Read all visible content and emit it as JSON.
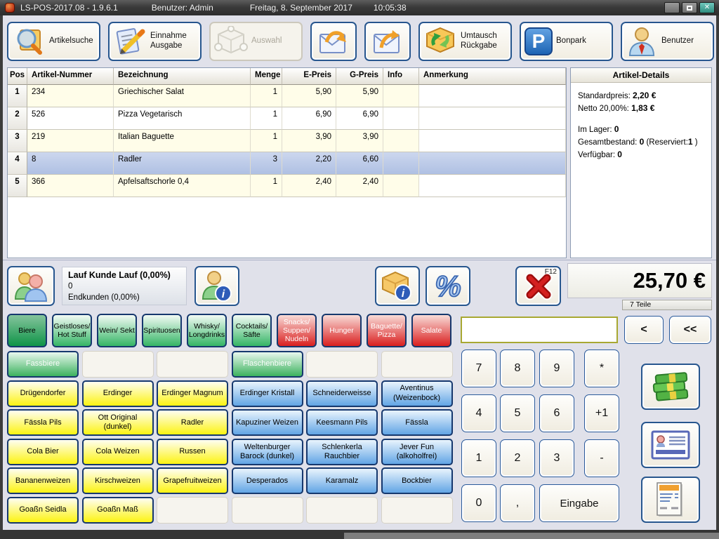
{
  "titlebar": {
    "title": "LS-POS-2017.08 - 1.9.6.1",
    "user": "Benutzer: Admin",
    "date": "Freitag, 8. September 2017",
    "time": "10:05:38",
    "close_glyph": "✕"
  },
  "toolbar": {
    "buttons": [
      {
        "label": "Artikelsuche",
        "icon": "search-box"
      },
      {
        "label": "Einnahme\nAusgabe",
        "icon": "note-pencil"
      },
      {
        "label": "Auswahl",
        "icon": "gray-cube",
        "disabled": true
      },
      {
        "label": "",
        "icon": "envelope-arrow-in"
      },
      {
        "label": "",
        "icon": "envelope-arrow-out"
      },
      {
        "label": "Umtausch\nRückgabe",
        "icon": "exchange-box"
      },
      {
        "label": "Bonpark",
        "icon": "parking",
        "glyph": "P"
      },
      {
        "label": "Benutzer",
        "icon": "user"
      }
    ]
  },
  "table": {
    "columns": [
      "Pos",
      "Artikel-Nummer",
      "Bezeichnung",
      "Menge",
      "E-Preis",
      "G-Preis",
      "Info",
      "Anmerkung"
    ],
    "rows": [
      {
        "pos": "1",
        "nr": "234",
        "name": "Griechischer Salat",
        "menge": "1",
        "epreis": "5,90",
        "gpreis": "5,90",
        "info": "",
        "anm": "",
        "selected": false
      },
      {
        "pos": "2",
        "nr": "526",
        "name": "Pizza Vegetarisch",
        "menge": "1",
        "epreis": "6,90",
        "gpreis": "6,90",
        "info": "",
        "anm": "",
        "selected": false
      },
      {
        "pos": "3",
        "nr": "219",
        "name": "Italian Baguette",
        "menge": "1",
        "epreis": "3,90",
        "gpreis": "3,90",
        "info": "",
        "anm": "",
        "selected": false
      },
      {
        "pos": "4",
        "nr": "8",
        "name": "Radler",
        "menge": "3",
        "epreis": "2,20",
        "gpreis": "6,60",
        "info": "",
        "anm": "",
        "selected": true
      },
      {
        "pos": "5",
        "nr": "366",
        "name": "Apfelsaftschorle 0,4",
        "menge": "1",
        "epreis": "2,40",
        "gpreis": "2,40",
        "info": "",
        "anm": "",
        "selected": false
      }
    ]
  },
  "details": {
    "title": "Artikel-Details",
    "lines": [
      [
        {
          "t": "Standardpreis: "
        },
        {
          "t": "2,20 €",
          "b": true
        }
      ],
      [
        {
          "t": "Netto 20,00%: "
        },
        {
          "t": "1,83 €",
          "b": true
        }
      ],
      [],
      [
        {
          "t": "Im Lager: "
        },
        {
          "t": "0",
          "b": true
        }
      ],
      [
        {
          "t": "Gesamtbestand: "
        },
        {
          "t": "0",
          "b": true
        },
        {
          "t": "  (Reserviert:"
        },
        {
          "t": "1",
          "b": true
        },
        {
          "t": " )"
        }
      ],
      [
        {
          "t": "Verfügbar: "
        },
        {
          "t": "0",
          "b": true
        }
      ]
    ]
  },
  "customer": {
    "line1": "Lauf Kunde Lauf (0,00%)",
    "line2": "0",
    "line3": "Endkunden (0,00%)"
  },
  "payment": {
    "total": "25,70 €",
    "items": "7 Teile",
    "cancel_fkey": "F12"
  },
  "categories": [
    {
      "label": "Biere",
      "color": "green",
      "selected": true
    },
    {
      "label": "Geistloses/ Hot Stuff",
      "color": "green"
    },
    {
      "label": "Wein/ Sekt",
      "color": "green"
    },
    {
      "label": "Spirituosen",
      "color": "green"
    },
    {
      "label": "Whisky/ Longdrinks",
      "color": "green"
    },
    {
      "label": "Cocktails/ Säfte",
      "color": "green"
    },
    {
      "label": "Snacks/ Suppen/ Nudeln",
      "color": "red"
    },
    {
      "label": "Hunger",
      "color": "red"
    },
    {
      "label": "Baguette/ Pizza",
      "color": "red"
    },
    {
      "label": "Salate",
      "color": "red"
    }
  ],
  "product_grid": {
    "rows": [
      [
        {
          "label": "Fassbiere",
          "type": "header"
        },
        {
          "type": "empty"
        },
        {
          "type": "empty"
        },
        {
          "label": "Flaschenbiere",
          "type": "header"
        },
        {
          "type": "empty"
        },
        {
          "type": "empty"
        }
      ],
      [
        {
          "label": "Drügendorfer",
          "type": "yellow"
        },
        {
          "label": "Erdinger",
          "type": "yellow"
        },
        {
          "label": "Erdinger Magnum",
          "type": "yellow"
        },
        {
          "label": "Erdinger Kristall",
          "type": "blue"
        },
        {
          "label": "Schneiderweisse",
          "type": "blue"
        },
        {
          "label": "Aventinus (Weizenbock)",
          "type": "blue"
        }
      ],
      [
        {
          "label": "Fässla Pils",
          "type": "yellow"
        },
        {
          "label": "Ott Original (dunkel)",
          "type": "yellow"
        },
        {
          "label": "Radler",
          "type": "yellow"
        },
        {
          "label": "Kapuziner Weizen",
          "type": "blue"
        },
        {
          "label": "Keesmann Pils",
          "type": "blue"
        },
        {
          "label": "Fässla",
          "type": "blue"
        }
      ],
      [
        {
          "label": "Cola Bier",
          "type": "yellow"
        },
        {
          "label": "Cola Weizen",
          "type": "yellow"
        },
        {
          "label": "Russen",
          "type": "yellow"
        },
        {
          "label": "Weltenburger Barock (dunkel)",
          "type": "blue"
        },
        {
          "label": "Schlenkerla Rauchbier",
          "type": "blue"
        },
        {
          "label": "Jever Fun (alkoholfrei)",
          "type": "blue"
        }
      ],
      [
        {
          "label": "Bananenweizen",
          "type": "yellow"
        },
        {
          "label": "Kirschweizen",
          "type": "yellow"
        },
        {
          "label": "Grapefruitweizen",
          "type": "yellow"
        },
        {
          "label": "Desperados",
          "type": "blue"
        },
        {
          "label": "Karamalz",
          "type": "blue"
        },
        {
          "label": "Bockbier",
          "type": "blue"
        }
      ],
      [
        {
          "label": "Goaßn Seidla",
          "type": "yellow"
        },
        {
          "label": "Goaßn Maß",
          "type": "yellow"
        },
        {
          "type": "empty"
        },
        {
          "type": "empty"
        },
        {
          "type": "empty"
        },
        {
          "type": "empty"
        }
      ]
    ]
  },
  "numpad": {
    "input_value": "",
    "back": "<",
    "back_all": "<<",
    "keys": [
      [
        "7",
        "8",
        "9",
        "*"
      ],
      [
        "4",
        "5",
        "6",
        "+1"
      ],
      [
        "1",
        "2",
        "3",
        "-"
      ],
      [
        "0",
        ",",
        "Eingabe"
      ]
    ]
  },
  "colors": {
    "tab_green": "#35b565",
    "tab_red": "#da1f1f",
    "product_yellow": "#fcf312",
    "product_blue": "#62a5e5",
    "selected_row": "#b9c8e6",
    "titlebar": "#3a3a3a"
  }
}
